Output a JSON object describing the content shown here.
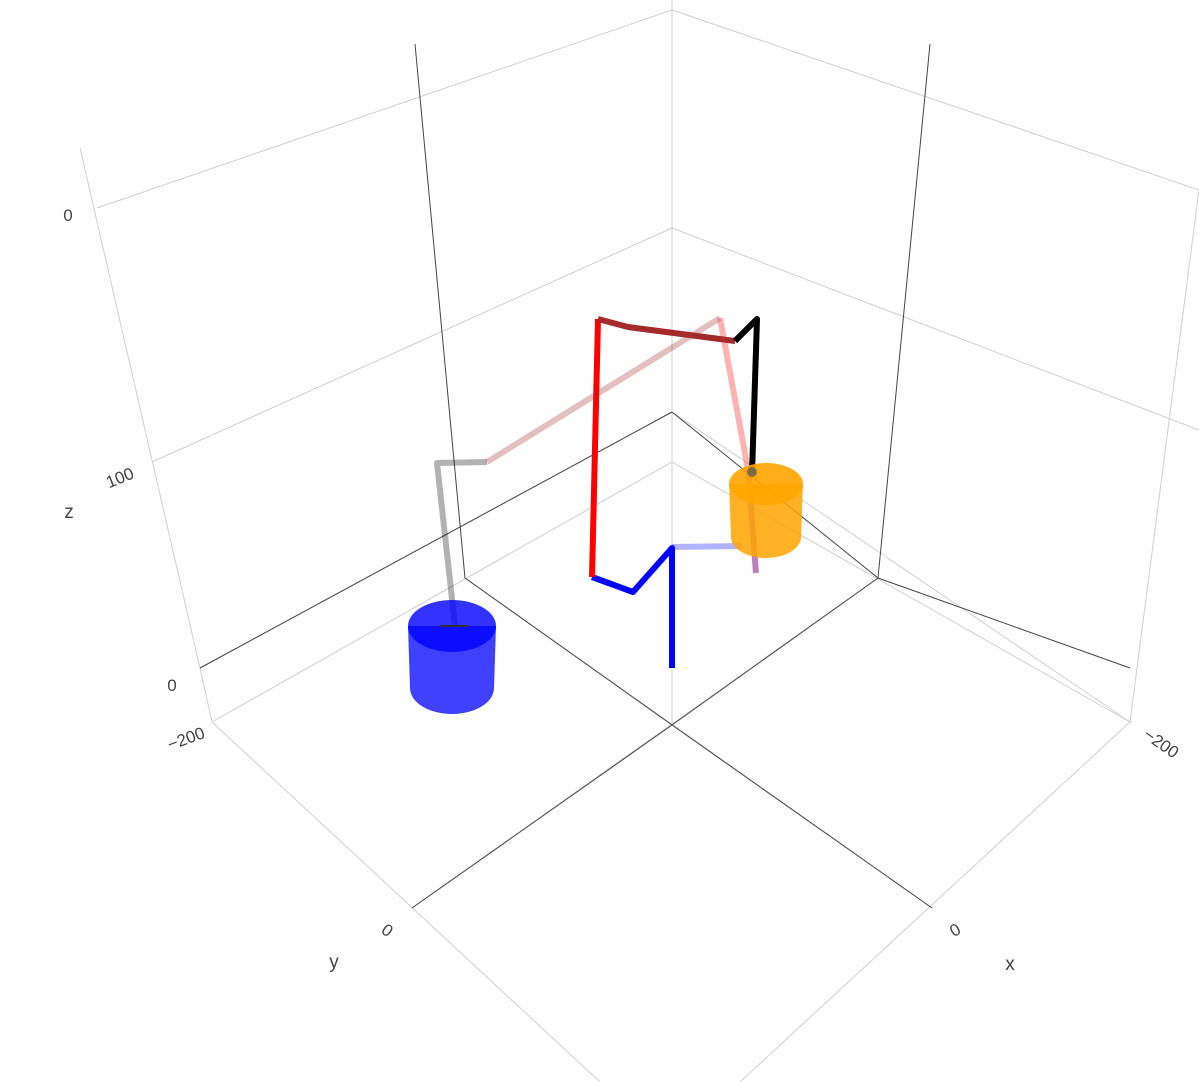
{
  "chart_data": {
    "type": "scatter3d",
    "scene": {
      "axes": {
        "x": {
          "title": "x",
          "tick_labels": [
            "−200",
            "0"
          ]
        },
        "y": {
          "title": "y",
          "tick_labels": [
            "−200",
            "0"
          ]
        },
        "z": {
          "title": "z",
          "tick_labels": [
            "0",
            "100",
            "0"
          ]
        }
      },
      "grid": true,
      "background": "#ffffff"
    },
    "traces": [
      {
        "kind": "line",
        "color": "#0000ff",
        "opacity": 1.0,
        "width": 6
      },
      {
        "kind": "line",
        "color": "#0000ff",
        "opacity": 0.3,
        "width": 6
      },
      {
        "kind": "line",
        "color": "#ff0000",
        "opacity": 1.0,
        "width": 6
      },
      {
        "kind": "line",
        "color": "#ff0000",
        "opacity": 0.3,
        "width": 6
      },
      {
        "kind": "line",
        "color": "#a52a2a",
        "opacity": 1.0,
        "width": 6
      },
      {
        "kind": "line",
        "color": "#a52a2a",
        "opacity": 0.3,
        "width": 6
      },
      {
        "kind": "line",
        "color": "#000000",
        "opacity": 1.0,
        "width": 6
      },
      {
        "kind": "line",
        "color": "#000000",
        "opacity": 0.3,
        "width": 6
      },
      {
        "kind": "line",
        "color": "#800080",
        "opacity": 0.5,
        "width": 6
      },
      {
        "kind": "cylinder",
        "color": "#ffa500",
        "opacity": 0.85
      },
      {
        "kind": "cylinder",
        "color": "#0000ff",
        "opacity": 0.75
      }
    ]
  }
}
